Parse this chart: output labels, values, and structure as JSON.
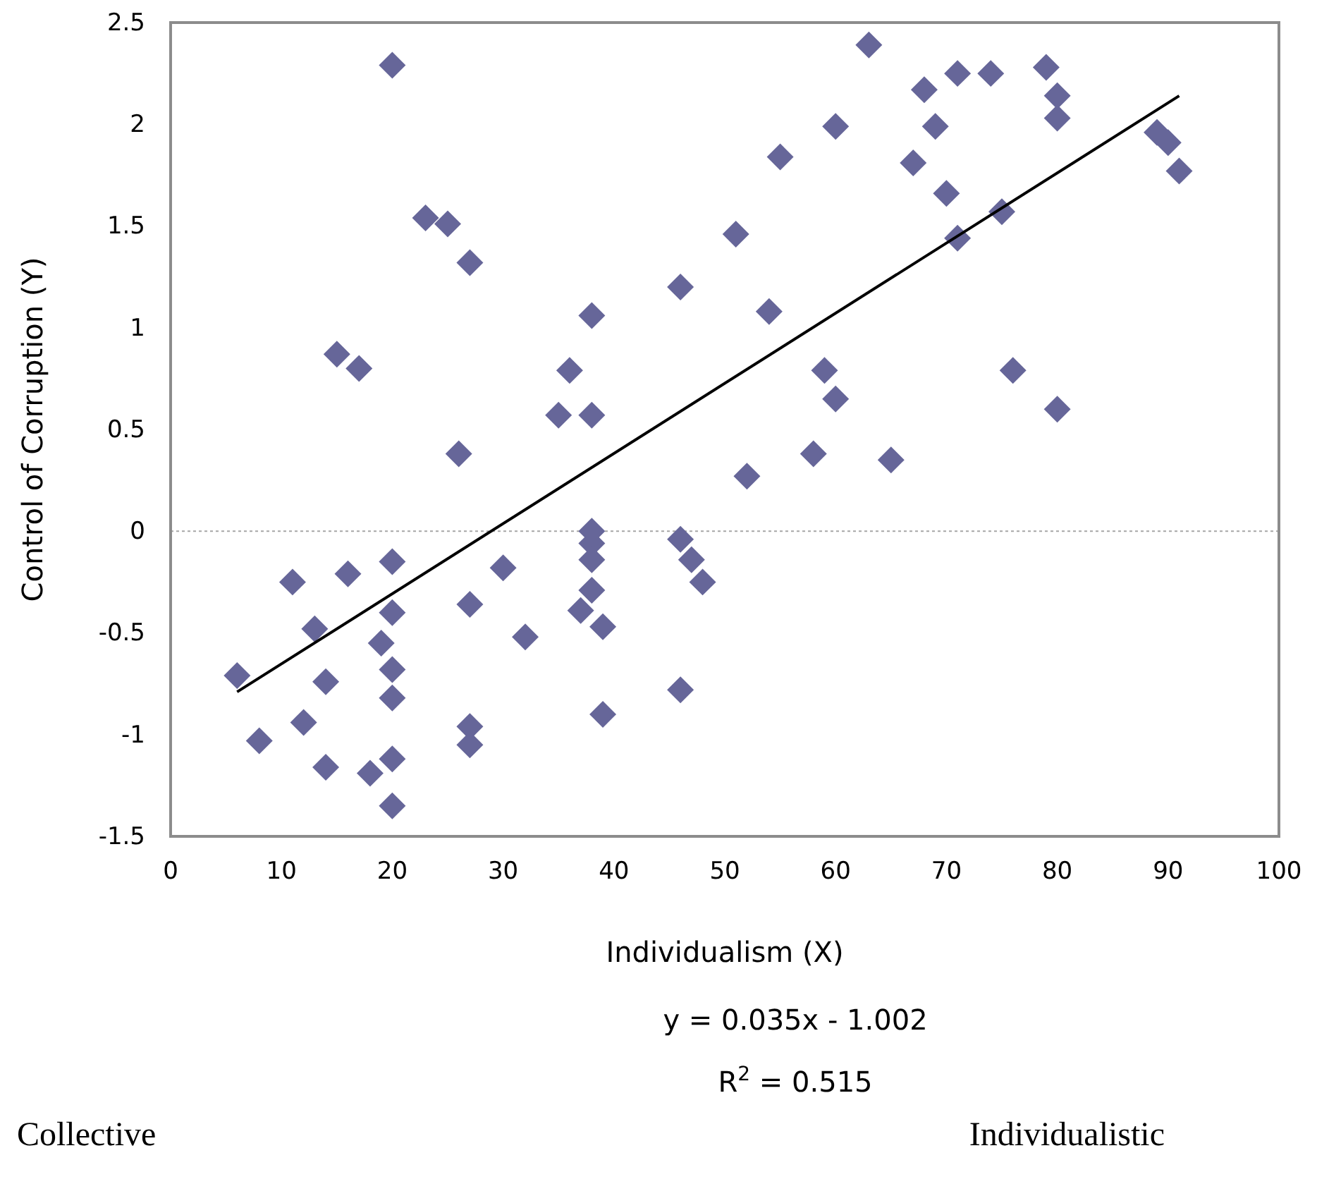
{
  "chart_data": {
    "type": "scatter",
    "xlabel": "Individualism (X)",
    "ylabel": "Control of Corruption (Y)",
    "xlim": [
      0,
      100
    ],
    "xticks": [
      0,
      10,
      20,
      30,
      40,
      50,
      60,
      70,
      80,
      90,
      100
    ],
    "ylim": [
      -1.5,
      2.5
    ],
    "yticks": [
      -1.5,
      -1,
      -0.5,
      0,
      0.5,
      1,
      1.5,
      2,
      2.5
    ],
    "marker": "diamond",
    "grid": false,
    "ref_lines": [
      {
        "axis": "y",
        "value": 0,
        "color": "#a6a6a6",
        "line_style": "dotted"
      }
    ],
    "annotations": [
      "y = 0.035x - 1.002",
      "R$^{2}$ = 0.515",
      "Collective",
      "Individualistic"
    ],
    "series": [
      {
        "color": "#666699",
        "x": [
          20,
          23,
          25,
          27,
          46,
          38,
          51,
          15,
          17,
          36,
          35,
          38,
          26,
          63,
          71,
          74,
          79,
          68,
          80,
          80,
          60,
          69,
          89,
          90,
          91,
          55,
          67,
          70,
          75,
          71,
          54,
          59,
          60,
          76,
          80,
          58,
          65,
          52,
          6,
          8,
          11,
          13,
          14,
          12,
          14,
          16,
          18,
          20,
          20,
          19,
          20,
          20,
          20,
          20,
          27,
          27,
          27,
          30,
          32,
          38,
          38,
          38,
          38,
          37,
          39,
          39,
          46,
          47,
          48,
          46
        ],
        "values": [
          2.29,
          1.54,
          1.51,
          1.32,
          1.2,
          1.06,
          1.46,
          0.87,
          0.8,
          0.79,
          0.57,
          0.57,
          0.38,
          2.39,
          2.25,
          2.25,
          2.28,
          2.17,
          2.14,
          2.03,
          1.99,
          1.99,
          1.96,
          1.91,
          1.77,
          1.84,
          1.81,
          1.66,
          1.57,
          1.44,
          1.08,
          0.79,
          0.65,
          0.79,
          0.6,
          0.38,
          0.35,
          0.27,
          -0.71,
          -1.03,
          -0.25,
          -0.48,
          -0.74,
          -0.94,
          -1.16,
          -0.21,
          -1.19,
          -0.15,
          -0.4,
          -0.55,
          -0.68,
          -0.82,
          -1.12,
          -1.35,
          -0.36,
          -0.96,
          -1.05,
          -0.18,
          -0.52,
          0,
          -0.06,
          -0.14,
          -0.29,
          -0.39,
          -0.47,
          -0.9,
          -0.04,
          -0.14,
          -0.25,
          -0.78
        ]
      },
      {
        "type": "line",
        "color": "#000000",
        "line_style": "solid",
        "marker": "none",
        "x": [
          6,
          91
        ],
        "values": [
          -0.79,
          2.14
        ]
      }
    ]
  }
}
